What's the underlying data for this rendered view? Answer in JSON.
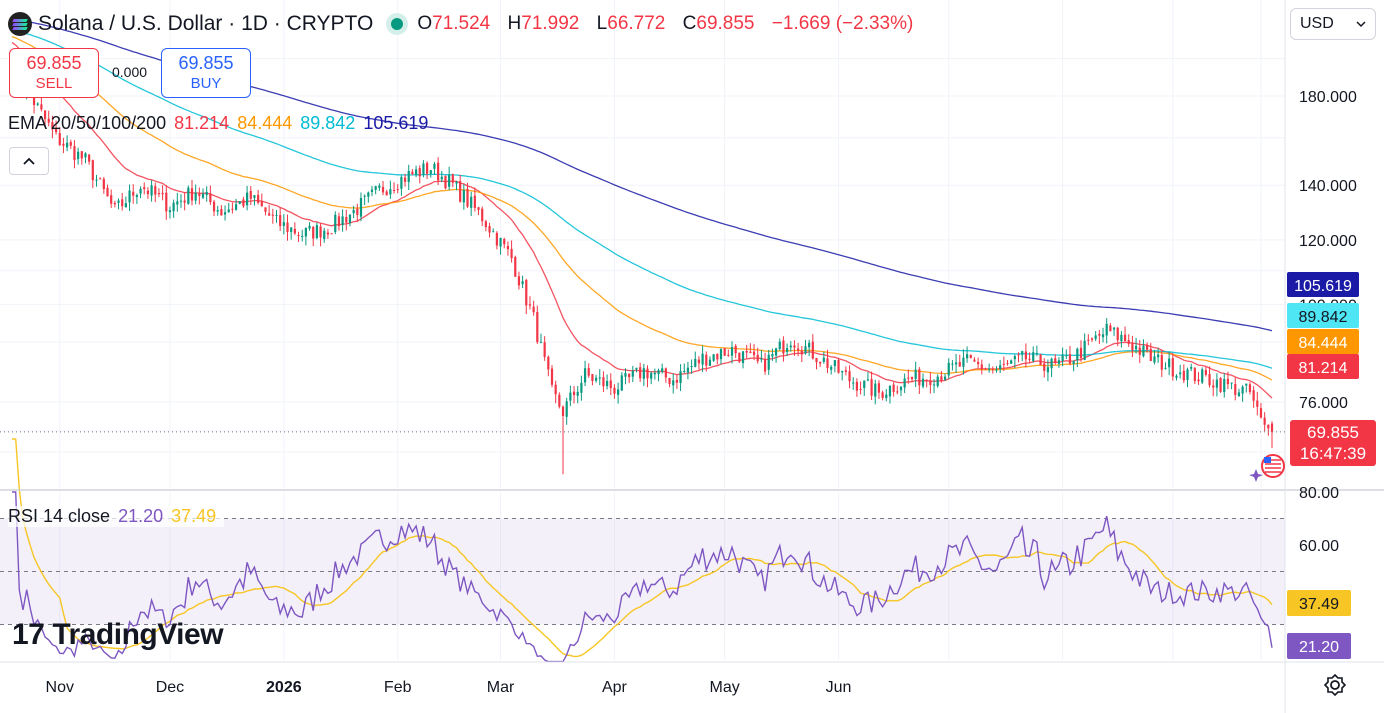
{
  "header": {
    "title": "Solana / U.S. Dollar · 1D · CRYPTO",
    "open_label": "O",
    "open": "71.524",
    "high_label": "H",
    "high": "71.992",
    "low_label": "L",
    "low": "66.772",
    "close_label": "C",
    "close": "69.855",
    "change": "−1.669 (−2.33%)"
  },
  "trade": {
    "sell_price": "69.855",
    "sell_label": "SELL",
    "buy_price": "69.855",
    "buy_label": "BUY",
    "spread": "0.000"
  },
  "ema_legend": {
    "label": "EMA 20/50/100/200",
    "ema20": "81.214",
    "ema50": "84.444",
    "ema100": "89.842",
    "ema200": "105.619"
  },
  "rsi_legend": {
    "label": "RSI 14 close",
    "rsi": "21.20",
    "ma": "37.49"
  },
  "currency": "USD",
  "brand": "TradingView",
  "countdown": "16:47:39",
  "colors": {
    "up": "#089981",
    "down": "#f23645",
    "ema20": "#f23645",
    "ema50": "#ff9800",
    "ema100": "#00bcd4",
    "ema200": "#1a1aa6",
    "rsi": "#7e57c2",
    "rsi_ma": "#f7c624"
  },
  "chart_data": [
    {
      "type": "candlestick",
      "title": "Solana / U.S. Dollar · 1D · CRYPTO",
      "x_ticks": [
        "Nov",
        "Dec",
        "2026",
        "Feb",
        "Mar",
        "Apr",
        "May",
        "Jun"
      ],
      "y_ticks": [
        "180.000",
        "140.000",
        "120.000",
        "100.000",
        "76.000"
      ],
      "ylim": [
        60,
        205
      ],
      "y_scale": "log",
      "grid": true,
      "last_price": "69.855",
      "anchors": [
        [
          0,
          192
        ],
        [
          5,
          180
        ],
        [
          12,
          160
        ],
        [
          20,
          150
        ],
        [
          28,
          130
        ],
        [
          35,
          140
        ],
        [
          43,
          132
        ],
        [
          50,
          138
        ],
        [
          57,
          130
        ],
        [
          65,
          135
        ],
        [
          72,
          126
        ],
        [
          79,
          122
        ],
        [
          86,
          124
        ],
        [
          93,
          130
        ],
        [
          100,
          138
        ],
        [
          108,
          144
        ],
        [
          114,
          147
        ],
        [
          120,
          140
        ],
        [
          128,
          128
        ],
        [
          136,
          114
        ],
        [
          142,
          96
        ],
        [
          147,
          78
        ],
        [
          150,
          74
        ],
        [
          156,
          82
        ],
        [
          164,
          79
        ],
        [
          172,
          83
        ],
        [
          180,
          81
        ],
        [
          188,
          86
        ],
        [
          196,
          88
        ],
        [
          204,
          84
        ],
        [
          212,
          91
        ],
        [
          220,
          86
        ],
        [
          228,
          81
        ],
        [
          236,
          78
        ],
        [
          244,
          81
        ],
        [
          252,
          82
        ],
        [
          260,
          85
        ],
        [
          268,
          83
        ],
        [
          276,
          86
        ],
        [
          284,
          84
        ],
        [
          290,
          87
        ],
        [
          298,
          93
        ],
        [
          304,
          90
        ],
        [
          310,
          86
        ],
        [
          318,
          83
        ],
        [
          326,
          81
        ],
        [
          333,
          79
        ],
        [
          337,
          78
        ],
        [
          340,
          72
        ],
        [
          343,
          69.855
        ]
      ],
      "candles_note": "",
      "ema": {
        "EMA 20": "81.214",
        "EMA 50": "84.444",
        "EMA 100": "89.842",
        "EMA 200": "105.619"
      }
    },
    {
      "type": "line",
      "title": "RSI 14 close",
      "y_ticks": [
        "80.00",
        "60.00"
      ],
      "ylim": [
        18,
        80
      ],
      "bands": [
        70,
        50,
        30
      ],
      "series": [
        {
          "name": "RSI",
          "last": "21.20"
        },
        {
          "name": "RSI-based MA",
          "last": "37.49"
        }
      ]
    }
  ]
}
